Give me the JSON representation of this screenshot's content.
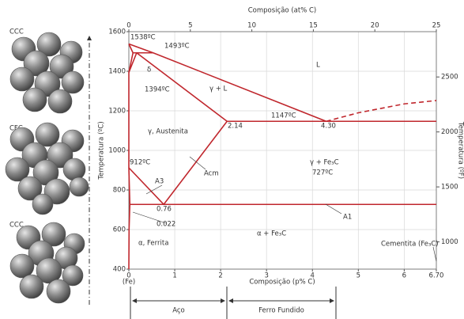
{
  "structures": [
    "CCC",
    "CFC",
    "CCC"
  ],
  "ranges": [
    "Aço",
    "Ferro Fundido"
  ],
  "chart_data": {
    "type": "line",
    "xlabel": "Composição (p% C)",
    "x2label": "Composição (at% C)",
    "ylabel": "Temperatura (ºC)",
    "y2label": "Temperatura (ºF)",
    "xlim": [
      0,
      6.7
    ],
    "xticks": [
      0,
      1,
      2,
      3,
      4,
      5,
      6,
      {
        "value": 6.7,
        "label": "6.70"
      }
    ],
    "x2lim": [
      0,
      25
    ],
    "x2ticks": [
      0,
      5,
      10,
      15,
      20,
      25
    ],
    "ylim": [
      400,
      1600
    ],
    "yticks": [
      400,
      600,
      800,
      1000,
      1200,
      1400,
      1600
    ],
    "y2lim": [
      752,
      2912
    ],
    "y2ticks": [
      1000,
      1500,
      2000,
      2500
    ],
    "grid": true,
    "series": [
      {
        "color": "#c0272d",
        "x": [
          0,
          0.53,
          4.3
        ],
        "values": [
          1538,
          1493,
          1147
        ]
      },
      {
        "color": "#c0272d",
        "x": [
          4.3,
          5,
          6,
          6.7
        ],
        "values": [
          1147,
          1190,
          1235,
          1252
        ],
        "dashed": true
      },
      {
        "color": "#c0272d",
        "x": [
          0,
          0.09
        ],
        "values": [
          1538,
          1493
        ]
      },
      {
        "color": "#c0272d",
        "x": [
          0.09,
          0.53
        ],
        "values": [
          1493,
          1493
        ]
      },
      {
        "color": "#c0272d",
        "x": [
          0.09,
          0
        ],
        "values": [
          1493,
          1394
        ]
      },
      {
        "color": "#c0272d",
        "x": [
          0.17,
          0
        ],
        "values": [
          1493,
          1394
        ]
      },
      {
        "color": "#c0272d",
        "x": [
          0.17,
          2.14
        ],
        "values": [
          1493,
          1147
        ]
      },
      {
        "color": "#c0272d",
        "x": [
          2.14,
          6.7
        ],
        "values": [
          1147,
          1147
        ]
      },
      {
        "color": "#c0272d",
        "x": [
          2.14,
          0.76
        ],
        "values": [
          1147,
          727
        ]
      },
      {
        "color": "#c0272d",
        "x": [
          0,
          0.76
        ],
        "values": [
          912,
          727
        ]
      },
      {
        "color": "#c0272d",
        "x": [
          0.022,
          6.7
        ],
        "values": [
          727,
          727
        ]
      },
      {
        "color": "#c0272d",
        "x": [
          0,
          0.022,
          0.005,
          0
        ],
        "values": [
          912,
          727,
          600,
          400
        ]
      },
      {
        "color": "#c0272d",
        "x": [
          0,
          0
        ],
        "values": [
          1394,
          912
        ]
      }
    ],
    "annotations": [
      "1538ºC",
      "1493ºC",
      "δ",
      "1394ºC",
      "L",
      "γ + L",
      "1147ºC",
      "γ, Austenita",
      "2.14",
      "4.30",
      "γ + Fe₃C",
      "912ºC",
      "A3",
      "Acm",
      "727ºC",
      "0.76",
      "0.022",
      "A1",
      "α, Ferrita",
      "α + Fe₃C",
      "Cementita (Fe₃C)",
      "(Fe)"
    ]
  }
}
